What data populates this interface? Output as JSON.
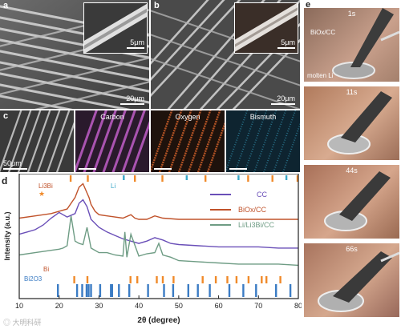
{
  "panels": {
    "a": {
      "label": "a",
      "scale_main": "20μm",
      "scale_inset": "5μm"
    },
    "b": {
      "label": "b",
      "scale_main": "20μm",
      "scale_inset": "5μm"
    },
    "c": {
      "label": "c",
      "scale_main": "50μm",
      "maps": [
        {
          "title": "Carbon",
          "color": "#c05ec8"
        },
        {
          "title": "Oxygen",
          "color": "#d8642c"
        },
        {
          "title": "Bismuth",
          "color": "#3aa7c8"
        }
      ]
    },
    "d": {
      "label": "d"
    },
    "e": {
      "label": "e",
      "frames": [
        {
          "time": "1s",
          "note_top": "BiOx/CC",
          "note_bottom": "molten Li"
        },
        {
          "time": "11s"
        },
        {
          "time": "44s"
        },
        {
          "time": "66s"
        }
      ]
    }
  },
  "watermark": "◎ 大明科研",
  "chart_data": {
    "type": "line",
    "xlabel": "2θ (degree)",
    "ylabel": "Intensity (a.u.)",
    "xlim": [
      10,
      80
    ],
    "xticks": [
      10,
      20,
      30,
      40,
      50,
      60,
      70,
      80
    ],
    "grid": false,
    "legend_position": "top-right",
    "series": [
      {
        "name": "CC",
        "color": "#6a4fb8",
        "x": [
          10,
          12,
          14,
          16,
          18,
          20,
          22,
          24,
          25,
          26,
          27,
          28,
          30,
          32,
          34,
          36,
          38,
          40,
          42,
          44,
          46,
          48,
          50,
          55,
          60,
          65,
          70,
          75,
          80
        ],
        "y": [
          0.56,
          0.58,
          0.6,
          0.64,
          0.7,
          0.75,
          0.71,
          0.74,
          0.83,
          0.86,
          0.8,
          0.69,
          0.62,
          0.58,
          0.55,
          0.52,
          0.5,
          0.48,
          0.5,
          0.53,
          0.51,
          0.48,
          0.47,
          0.46,
          0.45,
          0.45,
          0.45,
          0.44,
          0.44
        ]
      },
      {
        "name": "BiOx/CC",
        "color": "#c0522a",
        "x": [
          10,
          14,
          18,
          20,
          22,
          24,
          25,
          26,
          27,
          27.5,
          28,
          29,
          30,
          32,
          34,
          36,
          38,
          39,
          40,
          42,
          44,
          46,
          50,
          55,
          60,
          65,
          70,
          75,
          80
        ],
        "y": [
          0.7,
          0.72,
          0.74,
          0.76,
          0.78,
          0.88,
          0.97,
          1.0,
          0.92,
          0.88,
          0.82,
          0.76,
          0.73,
          0.72,
          0.71,
          0.7,
          0.73,
          0.7,
          0.69,
          0.69,
          0.72,
          0.7,
          0.69,
          0.69,
          0.69,
          0.69,
          0.69,
          0.69,
          0.69
        ]
      },
      {
        "name": "Li/Li3Bi/CC",
        "color": "#6e9c84",
        "x": [
          10,
          14,
          18,
          20,
          21,
          22,
          23,
          24,
          25,
          26,
          27,
          28,
          30,
          32,
          34,
          36,
          36.5,
          37,
          38,
          40,
          42,
          44,
          45,
          46,
          48,
          50,
          55,
          60,
          65,
          70,
          75,
          80
        ],
        "y": [
          0.38,
          0.4,
          0.42,
          0.43,
          0.44,
          0.46,
          0.72,
          0.5,
          0.48,
          0.47,
          0.62,
          0.44,
          0.4,
          0.4,
          0.38,
          0.37,
          0.58,
          0.36,
          0.56,
          0.37,
          0.39,
          0.4,
          0.48,
          0.38,
          0.36,
          0.33,
          0.32,
          0.31,
          0.3,
          0.3,
          0.3,
          0.29
        ]
      }
    ],
    "annotations": [
      "Li3Bi",
      "Li",
      "Bi",
      "Bi2O3"
    ],
    "reference_markers": {
      "Li3Bi": {
        "color": "#f08a2a",
        "positions": [
          22.9,
          27.2,
          39.0,
          45.9,
          56.7,
          67.4,
          73.5,
          79.8
        ]
      },
      "Li": {
        "color": "#3aa7c8",
        "positions": [
          36.2,
          52.0,
          65.0,
          77.0
        ]
      },
      "Bi": {
        "color": "#f08a2a",
        "positions": [
          23.8,
          27.1,
          37.9,
          39.6,
          44.5,
          46.0,
          48.7,
          56.0,
          59.3,
          62.2,
          64.5,
          67.5,
          70.8,
          72.0,
          75.5
        ]
      },
      "Bi2O3": {
        "color": "#3b7cc4",
        "positions": [
          19.7,
          24.5,
          25.8,
          26.9,
          27.4,
          28.0,
          30.3,
          33.0,
          33.3,
          35.0,
          37.6,
          42.3,
          46.3,
          48.6,
          52.4,
          54.8,
          57.8,
          62.7,
          66.2,
          69.4,
          74.4,
          78.0
        ]
      }
    }
  }
}
